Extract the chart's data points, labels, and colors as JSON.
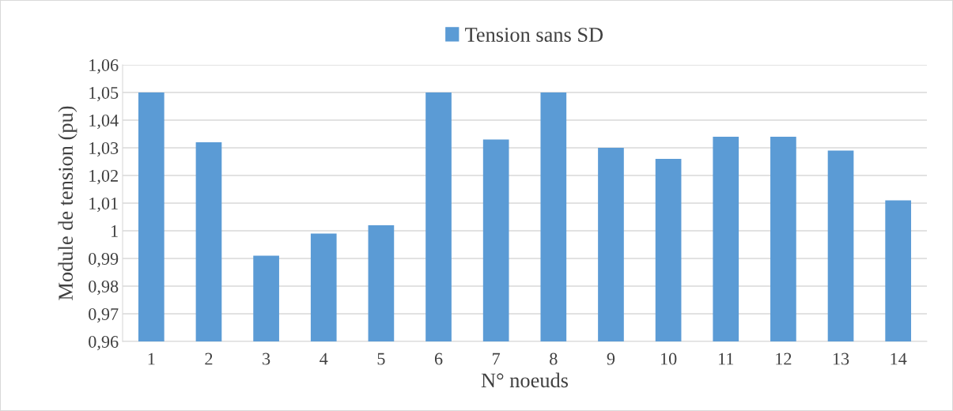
{
  "chart_data": {
    "type": "bar",
    "xlabel": "N° noeuds",
    "ylabel": "Module de tension (pu)",
    "categories": [
      "1",
      "2",
      "3",
      "4",
      "5",
      "6",
      "7",
      "8",
      "9",
      "10",
      "11",
      "12",
      "13",
      "14"
    ],
    "series": [
      {
        "name": "Tension sans SD",
        "color": "#5b9bd5",
        "values": [
          1.05,
          1.032,
          0.991,
          0.999,
          1.002,
          1.05,
          1.033,
          1.05,
          1.03,
          1.026,
          1.034,
          1.034,
          1.029,
          1.011
        ]
      }
    ],
    "ylim": [
      0.96,
      1.06
    ],
    "yticks": [
      {
        "value": 0.96,
        "label": "0,96"
      },
      {
        "value": 0.97,
        "label": "0,97"
      },
      {
        "value": 0.98,
        "label": "0,98"
      },
      {
        "value": 0.99,
        "label": "0,99"
      },
      {
        "value": 1,
        "label": "1"
      },
      {
        "value": 1.01,
        "label": "1,01"
      },
      {
        "value": 1.02,
        "label": "1,02"
      },
      {
        "value": 1.03,
        "label": "1,03"
      },
      {
        "value": 1.04,
        "label": "1,04"
      },
      {
        "value": 1.05,
        "label": "1,05"
      },
      {
        "value": 1.06,
        "label": "1,06"
      }
    ],
    "grid": "y",
    "legend": "top"
  }
}
